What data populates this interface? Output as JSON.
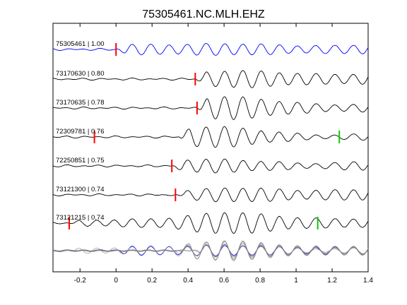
{
  "chart_data": {
    "type": "line",
    "title": "75305461.NC.MLH.EHZ",
    "xlabel": "",
    "ylabel": "",
    "xlim": [
      -0.35,
      1.4
    ],
    "x_ticks": [
      -0.2,
      0,
      0.2,
      0.4,
      0.6,
      0.8,
      1,
      1.2,
      1.4
    ],
    "x_tick_labels": [
      "-0.2",
      "0",
      "0.2",
      "0.4",
      "0.6",
      "0.8",
      "1",
      "1.2",
      "1.4"
    ],
    "grid": false,
    "colors": {
      "reference_trace": "#0000ff",
      "other_traces": "#000000",
      "stack_traces": "#808080",
      "pick_red": "#ff0000",
      "pick_green": "#00cc00"
    },
    "series": [
      {
        "label": "75305461 | 1.00",
        "onset": 0.0,
        "pick_red": 0.0,
        "pick_green": null,
        "reference": true
      },
      {
        "label": "73170630 | 0.80",
        "onset": 0.44,
        "pick_red": 0.44,
        "pick_green": null,
        "reference": false
      },
      {
        "label": "73170635 | 0.78",
        "onset": 0.45,
        "pick_red": 0.45,
        "pick_green": null,
        "reference": false
      },
      {
        "label": "72309781 | 0.76",
        "onset": 0.35,
        "pick_red": -0.12,
        "pick_green": 1.24,
        "reference": false
      },
      {
        "label": "72250851 | 0.75",
        "onset": 0.31,
        "pick_red": 0.31,
        "pick_green": null,
        "reference": false
      },
      {
        "label": "73121300 | 0.74",
        "onset": 0.33,
        "pick_red": 0.33,
        "pick_green": null,
        "reference": false
      },
      {
        "label": "73121215 | 0.74",
        "onset": -0.26,
        "pick_red": -0.26,
        "pick_green": 1.12,
        "reference": false
      }
    ]
  }
}
